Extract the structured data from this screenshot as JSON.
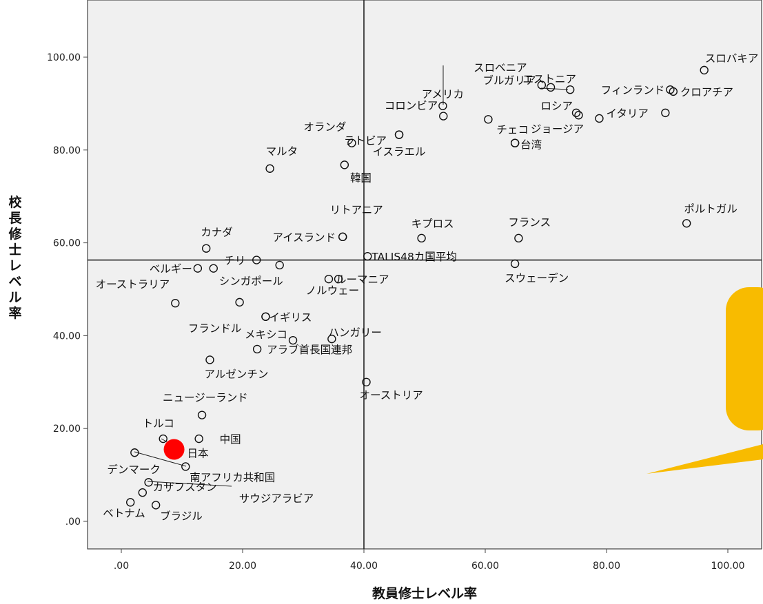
{
  "chart_data": {
    "type": "scatter",
    "xlabel": "教員修士レベル率",
    "ylabel": "校長修士レベル率",
    "xlim": [
      -5,
      105
    ],
    "ylim": [
      -6,
      112
    ],
    "xticks": [
      ".00",
      "20.00",
      "40.00",
      "60.00",
      "80.00",
      "100.00"
    ],
    "yticks": [
      ".00",
      "20.00",
      "40.00",
      "60.00",
      "80.00",
      "100.00"
    ],
    "reference_lines": {
      "x": 40.0,
      "y": 56.3
    },
    "grid": false,
    "highlight": {
      "label": "日本",
      "x": 8.7,
      "y": 15.5,
      "color": "#ff0000"
    },
    "callout_color": "#f8bb00",
    "points": [
      {
        "label": "スロバキア",
        "x": 96.1,
        "y": 97.2
      },
      {
        "label": "アメリカ",
        "x": 53.0,
        "y": 89.5
      },
      {
        "label": "スロベニア",
        "x": 69.3,
        "y": 94.0
      },
      {
        "label": "エストニア",
        "x": 74.0,
        "y": 93.0
      },
      {
        "label": "ブルガリア",
        "x": 70.8,
        "y": 93.5
      },
      {
        "label": "フィンランド",
        "x": 90.5,
        "y": 93.0
      },
      {
        "label": "クロアチア",
        "x": 91.0,
        "y": 92.6
      },
      {
        "label": "コロンビア",
        "x": 53.1,
        "y": 87.3
      },
      {
        "label": "ロシア",
        "x": 75.0,
        "y": 88.0
      },
      {
        "label": "",
        "x": 75.4,
        "y": 87.5
      },
      {
        "label": "イタリア",
        "x": 78.8,
        "y": 86.8
      },
      {
        "label": "",
        "x": 89.7,
        "y": 88.0
      },
      {
        "label": "チェコ",
        "x": 60.5,
        "y": 86.6
      },
      {
        "label": "ラトビア",
        "x": 45.8,
        "y": 83.3
      },
      {
        "label": "台湾",
        "x": 64.9,
        "y": 81.5
      },
      {
        "label": "ジョージア",
        "x": 64.9,
        "y": 81.5
      },
      {
        "label": "オランダ",
        "x": 38.0,
        "y": 81.5
      },
      {
        "label": "イスラエル",
        "x": 45.8,
        "y": 83.3
      },
      {
        "label": "マルタ",
        "x": 24.5,
        "y": 76.0
      },
      {
        "label": "韓国",
        "x": 36.8,
        "y": 76.8
      },
      {
        "label": "ポルトガル",
        "x": 93.2,
        "y": 64.2
      },
      {
        "label": "リトアニア",
        "x": 36.5,
        "y": 61.3
      },
      {
        "label": "アイスランド",
        "x": 36.5,
        "y": 61.3
      },
      {
        "label": "キプロス",
        "x": 49.5,
        "y": 61.0
      },
      {
        "label": "フランス",
        "x": 65.5,
        "y": 61.0
      },
      {
        "label": "カナダ",
        "x": 14.0,
        "y": 58.8
      },
      {
        "label": "チリ",
        "x": 22.3,
        "y": 56.3
      },
      {
        "label": "",
        "x": 26.1,
        "y": 55.2
      },
      {
        "label": "TALIS48カ国平均",
        "x": 40.6,
        "y": 57.1
      },
      {
        "label": "スウェーデン",
        "x": 64.9,
        "y": 55.5
      },
      {
        "label": "ベルギー",
        "x": 12.6,
        "y": 54.5
      },
      {
        "label": "シンガポール",
        "x": 15.2,
        "y": 54.5
      },
      {
        "label": "ルーマニア",
        "x": 35.8,
        "y": 52.2
      },
      {
        "label": "",
        "x": 34.2,
        "y": 52.2
      },
      {
        "label": "オーストラリア",
        "x": 8.9,
        "y": 47.0
      },
      {
        "label": "ノルウェー",
        "x": 19.5,
        "y": 47.2
      },
      {
        "label": "フランドル",
        "x": 23.8,
        "y": 44.1
      },
      {
        "label": "イギリス",
        "x": 23.8,
        "y": 44.1
      },
      {
        "label": "ハンガリー",
        "x": 34.7,
        "y": 39.3
      },
      {
        "label": "メキシコ",
        "x": 28.3,
        "y": 39.0
      },
      {
        "label": "アラブ首長国連邦",
        "x": 22.4,
        "y": 37.1
      },
      {
        "label": "アルゼンチン",
        "x": 14.6,
        "y": 34.8
      },
      {
        "label": "オーストリア",
        "x": 40.4,
        "y": 30.0
      },
      {
        "label": "ニュージーランド",
        "x": 13.3,
        "y": 22.9
      },
      {
        "label": "トルコ",
        "x": 6.9,
        "y": 17.8
      },
      {
        "label": "中国",
        "x": 12.8,
        "y": 17.8
      },
      {
        "label": "デンマーク",
        "x": 2.2,
        "y": 14.8
      },
      {
        "label": "南アフリカ共和国",
        "x": 10.6,
        "y": 11.8
      },
      {
        "label": "カザフスタン",
        "x": 4.5,
        "y": 8.4
      },
      {
        "label": "サウジアラビア",
        "x": 3.5,
        "y": 6.2
      },
      {
        "label": "ベトナム",
        "x": 1.5,
        "y": 4.1
      },
      {
        "label": "ブラジル",
        "x": 5.7,
        "y": 3.5
      }
    ]
  }
}
